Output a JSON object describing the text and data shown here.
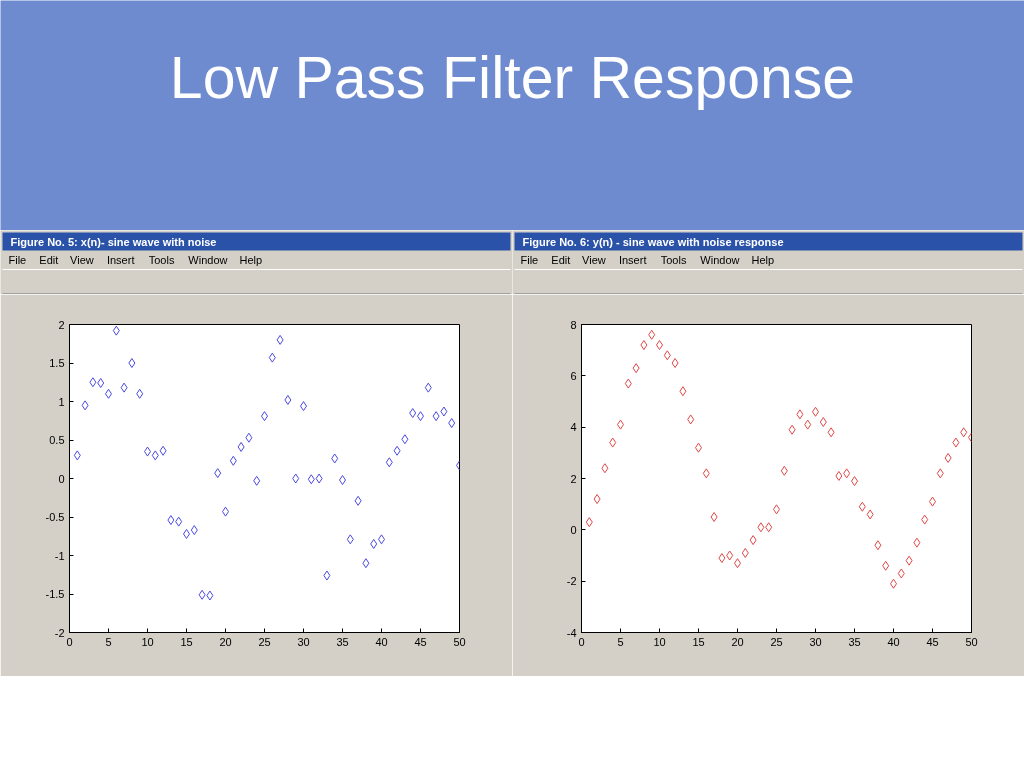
{
  "chart_data": [
    {
      "type": "other",
      "title": "Low Pass Filter Response"
    },
    {
      "type": "scatter",
      "title": "Figure No. 5: x(n)- sine wave with noise",
      "annotations": [
        "File",
        "Edit",
        "View",
        "Insert",
        "Tools",
        "Window",
        "Help"
      ],
      "x": [
        1,
        2,
        3,
        4,
        5,
        6,
        7,
        8,
        9,
        10,
        11,
        12,
        13,
        14,
        15,
        16,
        17,
        18,
        19,
        20,
        21,
        22,
        23,
        24,
        25,
        26,
        27,
        28,
        29,
        30,
        31,
        32,
        33,
        34,
        35,
        36,
        37,
        38,
        39,
        40,
        41,
        42,
        43,
        44,
        45,
        46,
        47,
        48,
        49,
        50
      ],
      "series": [
        {
          "color": "#4a4ae0",
          "values": [
            0.3,
            0.95,
            1.25,
            1.24,
            1.1,
            1.92,
            1.18,
            1.5,
            1.1,
            0.35,
            0.3,
            0.36,
            -0.54,
            -0.56,
            -0.72,
            -0.67,
            -1.51,
            -1.52,
            0.07,
            -0.43,
            0.23,
            0.41,
            0.53,
            -0.03,
            0.81,
            1.57,
            1.8,
            1.02,
            0.0,
            0.94,
            -0.01,
            0.0,
            -1.26,
            0.26,
            -0.02,
            -0.79,
            -0.29,
            -1.1,
            -0.85,
            -0.79,
            0.21,
            0.36,
            0.51,
            0.85,
            0.81,
            1.18,
            0.81,
            0.87,
            0.72,
            0.17
          ]
        }
      ],
      "xlim": [
        0,
        50
      ],
      "ylim": [
        -2,
        2
      ],
      "xticks": [
        0,
        5,
        10,
        15,
        20,
        25,
        30,
        35,
        40,
        45,
        50
      ],
      "yticks": [
        -2,
        -1.5,
        -1,
        -0.5,
        0,
        0.5,
        1,
        1.5,
        2
      ],
      "marker": "diamond"
    },
    {
      "type": "scatter",
      "title": "Figure No. 6: y(n) - sine wave with noise response",
      "annotations": [
        "File",
        "Edit",
        "View",
        "Insert",
        "Tools",
        "Window",
        "Help"
      ],
      "x": [
        1,
        2,
        3,
        4,
        5,
        6,
        7,
        8,
        9,
        10,
        11,
        12,
        13,
        14,
        15,
        16,
        17,
        18,
        19,
        20,
        21,
        22,
        23,
        24,
        25,
        26,
        27,
        28,
        29,
        30,
        31,
        32,
        33,
        34,
        35,
        36,
        37,
        38,
        39,
        40,
        41,
        42,
        43,
        44,
        45,
        46,
        47,
        48,
        49,
        50
      ],
      "series": [
        {
          "color": "#e04848",
          "values": [
            0.3,
            1.2,
            2.4,
            3.4,
            4.1,
            5.7,
            6.3,
            7.2,
            7.6,
            7.2,
            6.8,
            6.5,
            5.4,
            4.3,
            3.2,
            2.2,
            0.5,
            -1.1,
            -1.0,
            -1.3,
            -0.9,
            -0.4,
            0.1,
            0.1,
            0.8,
            2.3,
            3.9,
            4.5,
            4.1,
            4.6,
            4.2,
            3.8,
            2.1,
            2.2,
            1.9,
            0.9,
            0.6,
            -0.6,
            -1.4,
            -2.1,
            -1.7,
            -1.2,
            -0.5,
            0.4,
            1.1,
            2.2,
            2.8,
            3.4,
            3.8,
            3.6
          ]
        }
      ],
      "xlim": [
        0,
        50
      ],
      "ylim": [
        -4,
        8
      ],
      "xticks": [
        0,
        5,
        10,
        15,
        20,
        25,
        30,
        35,
        40,
        45,
        50
      ],
      "yticks": [
        -4,
        -2,
        0,
        2,
        4,
        6,
        8
      ],
      "marker": "diamond"
    }
  ]
}
